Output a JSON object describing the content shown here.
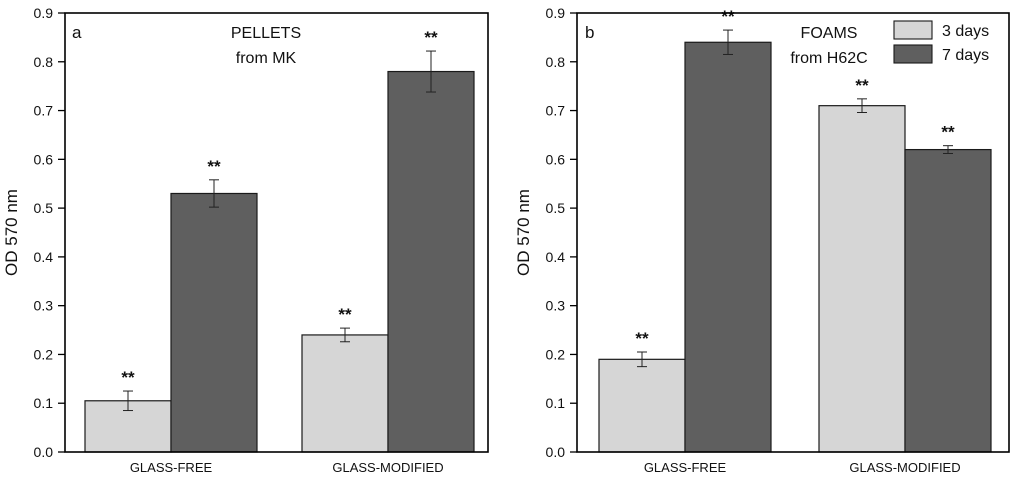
{
  "chart_data": [
    {
      "type": "bar",
      "panel_letter": "a",
      "title_lines": [
        "PELLETS",
        "from MK"
      ],
      "ylabel": "OD 570 nm",
      "xlabel": "",
      "ylim": [
        0,
        0.9
      ],
      "yticks": [
        "0.0",
        "0.1",
        "0.2",
        "0.3",
        "0.4",
        "0.5",
        "0.6",
        "0.7",
        "0.8",
        "0.9"
      ],
      "categories": [
        "GLASS-FREE",
        "GLASS-MODIFIED"
      ],
      "series": [
        {
          "name": "3 days",
          "color": "#d6d6d6",
          "values": [
            0.105,
            0.24
          ],
          "errors": [
            0.02,
            0.014
          ],
          "labels": [
            "**",
            "**"
          ]
        },
        {
          "name": "7 days",
          "color": "#5f5f5f",
          "values": [
            0.53,
            0.78
          ],
          "errors": [
            0.028,
            0.042
          ],
          "labels": [
            "**",
            "**"
          ]
        }
      ],
      "legend": null
    },
    {
      "type": "bar",
      "panel_letter": "b",
      "title_lines": [
        "FOAMS",
        "from H62C"
      ],
      "ylabel": "OD 570 nm",
      "xlabel": "",
      "ylim": [
        0,
        0.9
      ],
      "yticks": [
        "0.0",
        "0.1",
        "0.2",
        "0.3",
        "0.4",
        "0.5",
        "0.6",
        "0.7",
        "0.8",
        "0.9"
      ],
      "categories": [
        "GLASS-FREE",
        "GLASS-MODIFIED"
      ],
      "series": [
        {
          "name": "3 days",
          "color": "#d6d6d6",
          "values": [
            0.19,
            0.71
          ],
          "errors": [
            0.015,
            0.014
          ],
          "labels": [
            "**",
            "**"
          ]
        },
        {
          "name": "7 days",
          "color": "#5f5f5f",
          "values": [
            0.84,
            0.62
          ],
          "errors": [
            0.025,
            0.008
          ],
          "labels": [
            "**",
            "**"
          ]
        }
      ],
      "legend": "top-right"
    }
  ]
}
